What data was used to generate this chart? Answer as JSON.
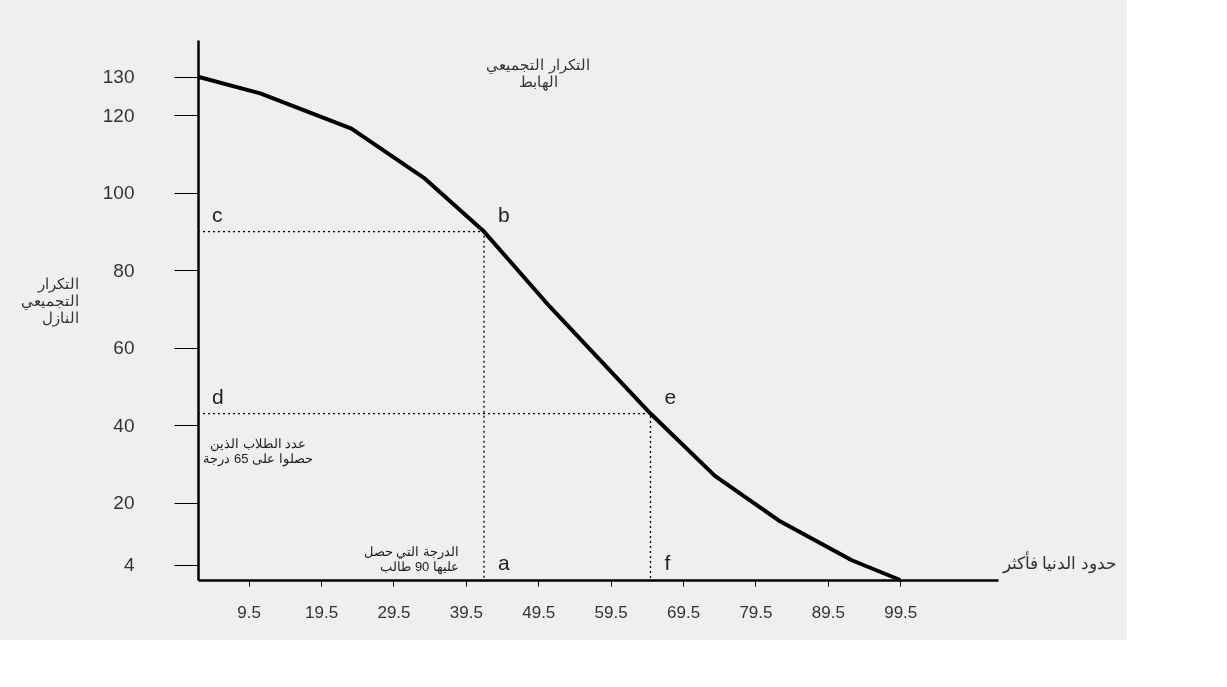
{
  "chart_data": {
    "type": "line",
    "title": "التكرار التجميعي\nالهابط",
    "xlabel": "حدود الدنيا فأكثر",
    "ylabel": "التكرار\nالتجميعي\nالنازل",
    "x": [
      2.5,
      11.1,
      23.7,
      33.7,
      42,
      51.1,
      65,
      73.9,
      82.7,
      92.8,
      99.5
    ],
    "series": [
      {
        "color": "#000000",
        "values": [
          130,
          125.7,
          116.6,
          103.9,
          90,
          70.6,
          43,
          26.9,
          15.4,
          5.1,
          0
        ]
      },
      {
        "type": "line",
        "line_style": "dotted",
        "color": "#000000",
        "x": [
          2.5,
          42,
          42
        ],
        "values": [
          90,
          90,
          0
        ]
      },
      {
        "type": "line",
        "line_style": "dotted",
        "color": "#000000",
        "x": [
          2.5,
          65,
          65
        ],
        "values": [
          43,
          43,
          0
        ]
      }
    ],
    "annotations": [
      {
        "text": "a",
        "x": 42,
        "y": 0
      },
      {
        "text": "b",
        "x": 42,
        "y": 90
      },
      {
        "text": "c",
        "x": 2.5,
        "y": 90
      },
      {
        "text": "d",
        "x": 2.5,
        "y": 43
      },
      {
        "text": "e",
        "x": 65,
        "y": 43
      },
      {
        "text": "f",
        "x": 65,
        "y": 0
      },
      {
        "text": "عدد الطلاب الذين\nحصلوا على 65 درجة",
        "x": 2.5,
        "y": 43
      },
      {
        "text": "الدرجة التي حصل\nعليها 90 طالب",
        "x": 42,
        "y": 0
      }
    ],
    "xlim": [
      2.5,
      113
    ],
    "ylim": [
      0,
      139.5
    ],
    "xticks": [
      9.5,
      19.5,
      29.5,
      39.5,
      49.5,
      59.5,
      69.5,
      79.5,
      89.5,
      99.5
    ],
    "yticks": [
      4,
      20,
      40,
      60,
      80,
      100,
      120,
      130
    ],
    "grid": false,
    "marker": "none",
    "line_style": "solid"
  }
}
